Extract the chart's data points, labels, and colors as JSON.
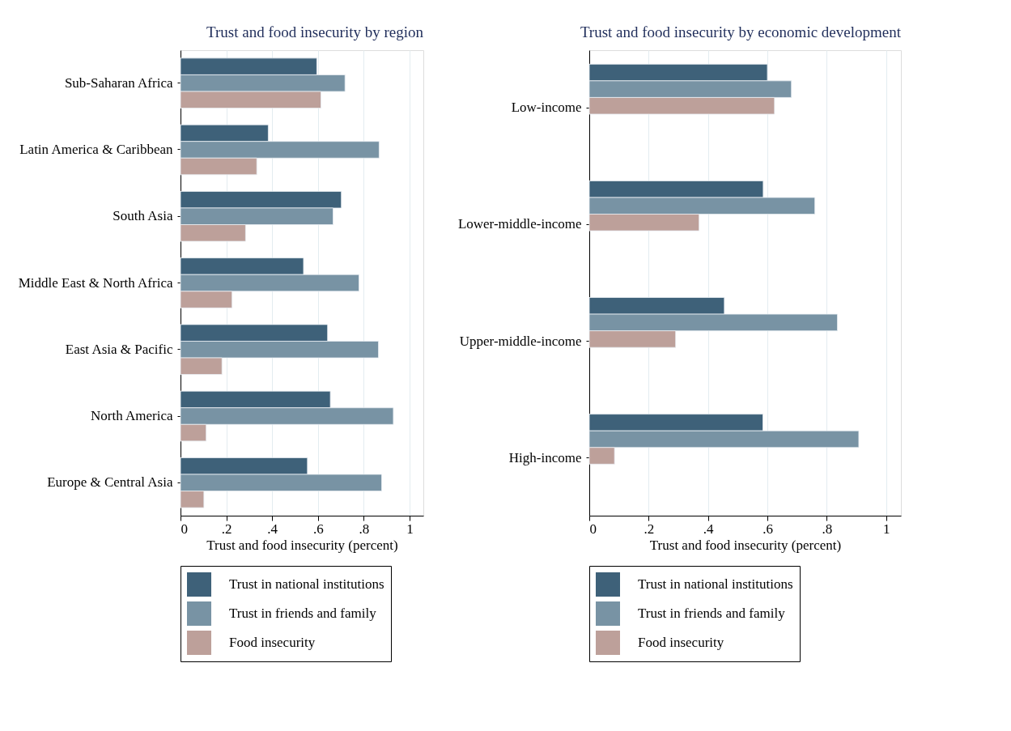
{
  "chart_data": [
    {
      "type": "bar",
      "orientation": "horizontal",
      "title": "Trust and food insecurity by region",
      "xlabel": "Trust and food insecurity (percent)",
      "categories": [
        "Sub-Saharan Africa",
        "Latin America & Caribbean",
        "South Asia",
        "Middle East & North Africa",
        "East Asia & Pacific",
        "North America",
        "Europe & Central Asia"
      ],
      "series": [
        {
          "name": "Trust in national institutions",
          "color": "#3e6179",
          "values": [
            0.595,
            0.383,
            0.702,
            0.537,
            0.642,
            0.654,
            0.554
          ]
        },
        {
          "name": "Trust in friends and family",
          "color": "#7893a4",
          "values": [
            0.718,
            0.867,
            0.666,
            0.779,
            0.864,
            0.929,
            0.878
          ]
        },
        {
          "name": "Food insecurity",
          "color": "#bda09a",
          "values": [
            0.613,
            0.333,
            0.284,
            0.225,
            0.181,
            0.112,
            0.102
          ]
        }
      ],
      "xlim": [
        0,
        1.06
      ],
      "xticks": [
        0,
        {
          "value": 0.2,
          "label": ".2"
        },
        {
          "value": 0.4,
          "label": ".4"
        },
        {
          "value": 0.6,
          "label": ".6"
        },
        {
          "value": 0.8,
          "label": ".8"
        },
        1
      ],
      "grid": "x",
      "legend": "bottom"
    },
    {
      "type": "bar",
      "orientation": "horizontal",
      "title": "Trust and food insecurity by economic development",
      "xlabel": "Trust and food insecurity (percent)",
      "categories": [
        "Low-income",
        "Lower-middle-income",
        "Upper-middle-income",
        "High-income"
      ],
      "series": [
        {
          "name": "Trust in national institutions",
          "color": "#3e6179",
          "values": [
            0.6,
            0.586,
            0.455,
            0.585
          ]
        },
        {
          "name": "Trust in friends and family",
          "color": "#7893a4",
          "values": [
            0.681,
            0.76,
            0.836,
            0.908
          ]
        },
        {
          "name": "Food insecurity",
          "color": "#bda09a",
          "values": [
            0.624,
            0.37,
            0.291,
            0.085
          ]
        }
      ],
      "xlim": [
        0,
        1.05
      ],
      "xticks": [
        0,
        {
          "value": 0.2,
          "label": ".2"
        },
        {
          "value": 0.4,
          "label": ".4"
        },
        {
          "value": 0.6,
          "label": ".6"
        },
        {
          "value": 0.8,
          "label": ".8"
        },
        1
      ],
      "grid": "x",
      "legend": "bottom"
    }
  ]
}
